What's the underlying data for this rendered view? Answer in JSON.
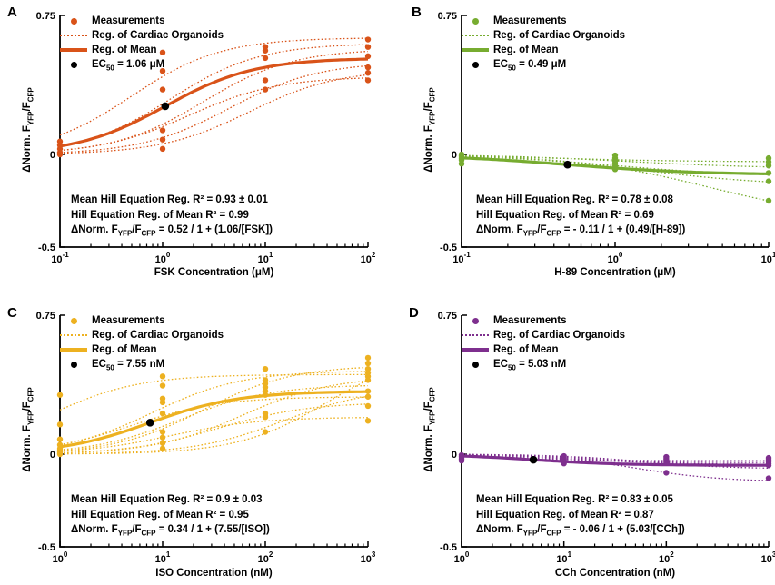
{
  "labels": {
    "legend_measurements": "Measurements",
    "legend_organoids": "Reg. of Cardiac Organoids",
    "legend_mean": "Reg. of Mean",
    "ec_pre": "EC",
    "ec_sub": "50",
    "ylabel_pre": "ΔNorm. F",
    "yfp": "YFP",
    "slash_f": "/F",
    "cfp": "CFP"
  },
  "chart_data": [
    {
      "type": "line",
      "letter": "A",
      "color": "#D95319",
      "xlabel": "FSK Concentration (μM)",
      "ylabel": "ΔNorm. F_YFP/F_CFP",
      "xlog_range": [
        -1,
        2
      ],
      "x_tick_exponents": [
        -1,
        0,
        1,
        2
      ],
      "ylim": [
        -0.5,
        0.75
      ],
      "y_ticks": [
        {
          "v": 0.75,
          "label": "0.75"
        },
        {
          "v": 0,
          "label": "0"
        },
        {
          "v": -0.5,
          "label": "-0.5"
        }
      ],
      "ec50_text": " = 1.06 μM",
      "stats_line1": "Mean Hill Equation Reg. R² = 0.93 ± 0.01",
      "stats_line2": "Hill Equation Reg. of Mean R² = 0.99",
      "equation_rhs": " = 0.52 / 1 + (1.06/[FSK])",
      "mean_hill": {
        "emax": 0.52,
        "ec50": 1.06
      },
      "organoid_hills": [
        {
          "emax": 0.63,
          "ec50": 0.5
        },
        {
          "emax": 0.6,
          "ec50": 1.2
        },
        {
          "emax": 0.57,
          "ec50": 2.5
        },
        {
          "emax": 0.5,
          "ec50": 4.5
        },
        {
          "emax": 0.46,
          "ec50": 7
        },
        {
          "emax": 0.42,
          "ec50": 1.8
        }
      ],
      "measurements": [
        {
          "x": 0.1,
          "y": [
            0.07,
            0.05,
            0.03,
            0.01,
            0.0
          ]
        },
        {
          "x": 1,
          "y": [
            0.55,
            0.45,
            0.35,
            0.13,
            0.08,
            0.03
          ]
        },
        {
          "x": 10,
          "y": [
            0.58,
            0.56,
            0.52,
            0.4,
            0.35
          ]
        },
        {
          "x": 100,
          "y": [
            0.62,
            0.58,
            0.53,
            0.47,
            0.44,
            0.4
          ]
        }
      ],
      "ec50_point": [
        1.06,
        0.26
      ]
    },
    {
      "type": "line",
      "letter": "B",
      "color": "#77AC30",
      "xlabel": "H-89 Concentration (μM)",
      "ylabel": "ΔNorm. F_YFP/F_CFP",
      "xlog_range": [
        -1,
        1
      ],
      "x_tick_exponents": [
        -1,
        0,
        1
      ],
      "ylim": [
        -0.5,
        0.75
      ],
      "y_ticks": [
        {
          "v": 0.75,
          "label": "0.75"
        },
        {
          "v": 0,
          "label": "0"
        },
        {
          "v": -0.5,
          "label": "-0.5"
        }
      ],
      "ec50_text": " = 0.49 μM",
      "stats_line1": "Mean Hill Equation Reg. R² = 0.78 ± 0.08",
      "stats_line2": "Hill Equation Reg. of Mean R² = 0.69",
      "equation_rhs": " = - 0.11 / 1 + (0.49/[H-89])",
      "mean_hill": {
        "emax": -0.11,
        "ec50": 0.49
      },
      "organoid_hills": [
        {
          "emax": -0.04,
          "ec50": 0.4
        },
        {
          "emax": -0.075,
          "ec50": 1.2
        },
        {
          "emax": -0.12,
          "ec50": 1.0
        },
        {
          "emax": -0.17,
          "ec50": 1.5
        },
        {
          "emax": -0.35,
          "ec50": 4
        }
      ],
      "measurements": [
        {
          "x": 0.1,
          "y": [
            0.0,
            -0.01,
            -0.02,
            -0.03,
            -0.05
          ]
        },
        {
          "x": 1,
          "y": [
            -0.005,
            -0.02,
            -0.035,
            -0.05,
            -0.065,
            -0.08
          ]
        },
        {
          "x": 10,
          "y": [
            -0.02,
            -0.04,
            -0.06,
            -0.1,
            -0.145,
            -0.25
          ]
        }
      ],
      "ec50_point": [
        0.49,
        -0.055
      ]
    },
    {
      "type": "line",
      "letter": "C",
      "color": "#EDB120",
      "xlabel": "ISO Concentration (nM)",
      "ylabel": "ΔNorm. F_YFP/F_CFP",
      "xlog_range": [
        0,
        3
      ],
      "x_tick_exponents": [
        0,
        1,
        2,
        3
      ],
      "ylim": [
        -0.5,
        0.75
      ],
      "y_ticks": [
        {
          "v": 0.75,
          "label": "0.75"
        },
        {
          "v": 0,
          "label": "0"
        },
        {
          "v": -0.5,
          "label": "-0.5"
        }
      ],
      "ec50_text": " = 7.55 nM",
      "stats_line1": "Mean Hill Equation Reg. R² = 0.9 ± 0.03",
      "stats_line2": "Hill Equation Reg. of Mean R² = 0.95",
      "equation_rhs": " = 0.34 / 1 + (7.55/[ISO])",
      "mean_hill": {
        "emax": 0.34,
        "ec50": 7.55
      },
      "organoid_hills": [
        {
          "emax": 0.43,
          "ec50": 0.8
        },
        {
          "emax": 0.48,
          "ec50": 25
        },
        {
          "emax": 0.45,
          "ec50": 8
        },
        {
          "emax": 0.42,
          "ec50": 60
        },
        {
          "emax": 0.375,
          "ec50": 15
        },
        {
          "emax": 0.36,
          "ec50": 150
        },
        {
          "emax": 0.31,
          "ec50": 5
        },
        {
          "emax": 0.28,
          "ec50": 35
        },
        {
          "emax": 0.2,
          "ec50": 12
        },
        {
          "emax": 0.56,
          "ec50": 400
        }
      ],
      "measurements": [
        {
          "x": 1,
          "y": [
            0.32,
            0.16,
            0.08,
            0.05,
            0.03,
            0.02,
            0.01,
            0.0
          ]
        },
        {
          "x": 10,
          "y": [
            0.42,
            0.37,
            0.3,
            0.28,
            0.22,
            0.12,
            0.09,
            0.06,
            0.03
          ]
        },
        {
          "x": 100,
          "y": [
            0.46,
            0.4,
            0.38,
            0.36,
            0.34,
            0.32,
            0.22,
            0.2,
            0.12
          ]
        },
        {
          "x": 1000,
          "y": [
            0.52,
            0.49,
            0.46,
            0.44,
            0.42,
            0.4,
            0.34,
            0.31,
            0.26,
            0.18
          ]
        }
      ],
      "ec50_point": [
        7.55,
        0.17
      ]
    },
    {
      "type": "line",
      "letter": "D",
      "color": "#7E2F8E",
      "xlabel": "CCh Concentration (nM)",
      "ylabel": "ΔNorm. F_YFP/F_CFP",
      "xlog_range": [
        0,
        3
      ],
      "x_tick_exponents": [
        0,
        1,
        2,
        3
      ],
      "ylim": [
        -0.5,
        0.75
      ],
      "y_ticks": [
        {
          "v": 0.75,
          "label": "0.75"
        },
        {
          "v": 0,
          "label": "0"
        },
        {
          "v": -0.5,
          "label": "-0.5"
        }
      ],
      "ec50_text": " = 5.03 nM",
      "stats_line1": "Mean Hill Equation Reg. R² = 0.83 ± 0.05",
      "stats_line2": "Hill Equation Reg. of Mean R² = 0.87",
      "equation_rhs": " = - 0.06 / 1 + (5.03/[CCh])",
      "mean_hill": {
        "emax": -0.06,
        "ec50": 5.03
      },
      "organoid_hills": [
        {
          "emax": -0.035,
          "ec50": 2
        },
        {
          "emax": -0.045,
          "ec50": 6
        },
        {
          "emax": -0.055,
          "ec50": 15
        },
        {
          "emax": -0.065,
          "ec50": 30
        },
        {
          "emax": -0.08,
          "ec50": 60
        },
        {
          "emax": -0.15,
          "ec50": 50
        }
      ],
      "measurements": [
        {
          "x": 1,
          "y": [
            -0.005,
            -0.015,
            -0.025,
            -0.035
          ]
        },
        {
          "x": 10,
          "y": [
            -0.01,
            -0.02,
            -0.03,
            -0.04,
            -0.05
          ]
        },
        {
          "x": 100,
          "y": [
            -0.015,
            -0.025,
            -0.035,
            -0.045,
            -0.1
          ]
        },
        {
          "x": 1000,
          "y": [
            -0.02,
            -0.03,
            -0.04,
            -0.05,
            -0.06,
            -0.13
          ]
        }
      ],
      "ec50_point": [
        5.03,
        -0.03
      ]
    }
  ]
}
